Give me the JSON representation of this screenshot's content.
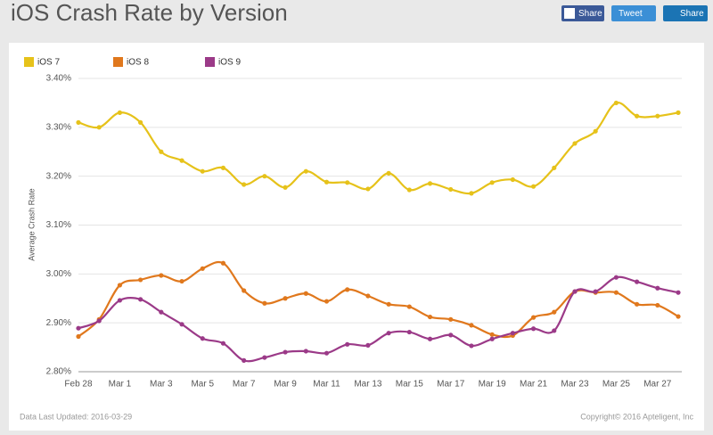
{
  "chart_data": {
    "type": "line",
    "title": "iOS Crash Rate by Version",
    "ylabel": "Average Crash Rate",
    "categories": [
      "Feb 28",
      null,
      "Mar 1",
      null,
      "Mar 3",
      null,
      "Mar 5",
      null,
      "Mar 7",
      null,
      "Mar 9",
      null,
      "Mar 11",
      null,
      "Mar 13",
      null,
      "Mar 15",
      null,
      "Mar 17",
      null,
      "Mar 19",
      null,
      "Mar 21",
      null,
      "Mar 23",
      null,
      "Mar 25",
      null,
      "Mar 27",
      null
    ],
    "series": [
      {
        "name": "iOS 7",
        "color": "#e6c21a",
        "values": [
          3.31,
          3.3,
          3.33,
          3.31,
          3.25,
          3.232,
          3.21,
          3.217,
          3.183,
          3.2,
          3.177,
          3.21,
          3.188,
          3.187,
          3.174,
          3.206,
          3.172,
          3.185,
          3.173,
          3.165,
          3.187,
          3.193,
          3.179,
          3.217,
          3.267,
          3.292,
          3.35,
          3.323,
          3.323,
          3.33
        ]
      },
      {
        "name": "iOS 8",
        "color": "#e0781d",
        "values": [
          2.872,
          2.907,
          2.977,
          2.988,
          2.997,
          2.985,
          3.011,
          3.022,
          2.966,
          2.94,
          2.95,
          2.96,
          2.944,
          2.968,
          2.955,
          2.938,
          2.933,
          2.912,
          2.907,
          2.895,
          2.876,
          2.874,
          2.911,
          2.922,
          2.964,
          2.962,
          2.962,
          2.938,
          2.936,
          2.913
        ]
      },
      {
        "name": "iOS 9",
        "color": "#9b3a88",
        "values": [
          2.889,
          2.904,
          2.946,
          2.948,
          2.922,
          2.897,
          2.868,
          2.858,
          2.823,
          2.829,
          2.84,
          2.842,
          2.838,
          2.856,
          2.854,
          2.879,
          2.881,
          2.867,
          2.875,
          2.853,
          2.867,
          2.879,
          2.888,
          2.884,
          2.964,
          2.964,
          2.993,
          2.984,
          2.971,
          2.962
        ]
      }
    ],
    "ylim": [
      2.8,
      3.4
    ],
    "yticks": [
      {
        "value": 2.8,
        "label": "2.80%"
      },
      {
        "value": 2.9,
        "label": "2.90%"
      },
      {
        "value": 3.0,
        "label": "3.00%"
      },
      {
        "value": 3.1,
        "label": "3.10%"
      },
      {
        "value": 3.2,
        "label": "3.20%"
      },
      {
        "value": 3.3,
        "label": "3.30%"
      },
      {
        "value": 3.4,
        "label": "3.40%"
      }
    ],
    "grid": true,
    "legend": "top-left"
  },
  "share_buttons": [
    "Share",
    "Tweet",
    "Share"
  ],
  "footer": {
    "left": "Data Last Updated: 2016-03-29",
    "right": "Copyright© 2016 Apteligent, Inc"
  }
}
